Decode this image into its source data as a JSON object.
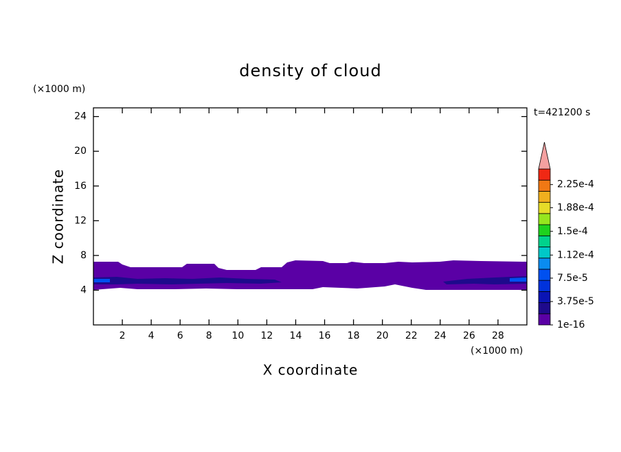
{
  "chart_data": {
    "type": "contour",
    "title": "density of cloud",
    "x_label": "X coordinate",
    "y_label": "Z coordinate",
    "x_unit": "(×1000 m)",
    "y_unit": "(×1000 m)",
    "time_label": "t=421200 s",
    "xlim": [
      0,
      30
    ],
    "xticks": [
      2,
      4,
      6,
      8,
      10,
      12,
      14,
      16,
      18,
      20,
      22,
      24,
      26,
      28
    ],
    "ylim": [
      0,
      25
    ],
    "yticks": [
      4,
      8,
      12,
      16,
      20,
      24
    ],
    "clim": [
      0,
      0.00025
    ],
    "cticks": [
      1e-16,
      {
        "value": 3.75e-05,
        "label": "3.75e-5"
      },
      {
        "value": 7.5e-05,
        "label": "7.5e-5"
      },
      {
        "value": 0.000112,
        "label": "1.12e-4"
      },
      {
        "value": 0.00015,
        "label": "1.5e-4"
      },
      {
        "value": 0.000188,
        "label": "1.88e-4"
      },
      {
        "value": 0.000225,
        "label": "2.25e-4"
      }
    ],
    "colors": [
      "#5a00a5",
      "#1e0a8c",
      "#0a14b4",
      "#0032dc",
      "#0050f0",
      "#0a8cf0",
      "#00c8c8",
      "#00d28c",
      "#1ed21e",
      "#96e61e",
      "#e6dc28",
      "#f0af1e",
      "#f07814",
      "#f02814"
    ],
    "extend_color": "#f4a0a0"
  }
}
